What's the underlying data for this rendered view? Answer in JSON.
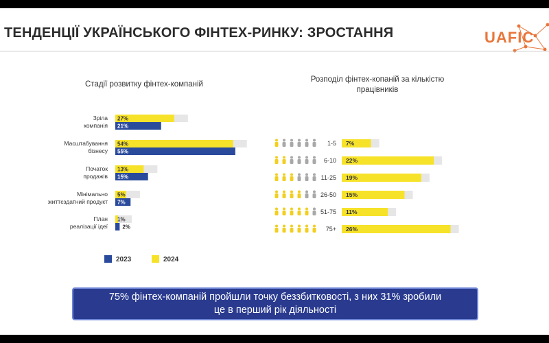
{
  "slide": {
    "title": "ТЕНДЕНЦІЇ УКРАЇНСЬКОГО ФІНТЕХ-РИНКУ: ЗРОСТАННЯ",
    "logo_text": "UAFIC",
    "callout_line1": "75% фінтех-компаній пройшли точку беззбитковості, з них 31% зробили",
    "callout_line2": "це в перший рік діяльності"
  },
  "colors": {
    "y2023": "#2a4a9c",
    "y2024": "#f7e22a",
    "shadow": "#e6e6e6",
    "people_active": "#f2cf1f",
    "people_inactive": "#a8a8a8",
    "callout_bg": "#2a3b8f"
  },
  "chart_data": [
    {
      "type": "bar",
      "title": "Стадії розвитку фінтех-компаній",
      "orientation": "horizontal",
      "categories": [
        [
          "Зріла",
          "компанія"
        ],
        [
          "Масштабування",
          "бізнесу"
        ],
        [
          "Початок",
          "продажів"
        ],
        [
          "Мінімально",
          "життєздатний продукт"
        ],
        [
          "План",
          "реалізації ідеї"
        ]
      ],
      "series": [
        {
          "name": "2024",
          "values": [
            27,
            54,
            13,
            5,
            1
          ],
          "labels": [
            "27%",
            "54%",
            "13%",
            "5%",
            "1%"
          ]
        },
        {
          "name": "2023",
          "values": [
            21,
            55,
            15,
            7,
            2
          ],
          "labels": [
            "21%",
            "55%",
            "15%",
            "7%",
            "2%"
          ]
        }
      ],
      "legend": [
        "2023",
        "2024"
      ],
      "legend_position": "bottom"
    },
    {
      "type": "bar",
      "title": [
        "Розподіл фінтех-копаній за кількістю",
        "працівників"
      ],
      "orientation": "horizontal",
      "categories": [
        "1-5",
        "6-10",
        "11-25",
        "26-50",
        "51-75",
        "75+"
      ],
      "values": [
        7,
        22,
        19,
        15,
        11,
        26
      ],
      "labels": [
        "7%",
        "22%",
        "19%",
        "15%",
        "11%",
        "26%"
      ],
      "icon_highlight": [
        1,
        2,
        3,
        4,
        5,
        6
      ],
      "icon_total": 6
    }
  ]
}
